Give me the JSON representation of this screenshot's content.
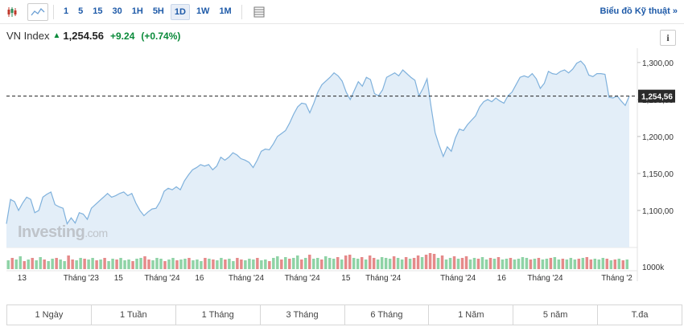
{
  "toolbar": {
    "candle_icon": "candlestick-icon",
    "area_icon": "area-chart-icon",
    "intervals": [
      "1",
      "5",
      "15",
      "30",
      "1H",
      "5H",
      "1D",
      "1W",
      "1M"
    ],
    "active_interval": "1D",
    "table_icon": "table-icon",
    "tech_chart_link": "Biểu đồ Kỹ thuật »"
  },
  "header": {
    "name": "VN Index",
    "price": "1,254.56",
    "change": "+9.24",
    "change_pct": "(+0.74%)",
    "info_label": "i"
  },
  "logo": {
    "text": "Investing",
    "suffix": ".com"
  },
  "colors": {
    "line": "#7fb1dc",
    "area": "#e3eef8",
    "up_volume": "#8fd3a6",
    "down_volume": "#e58a8a",
    "positive": "#0a8a3a",
    "link": "#1e5aa8"
  },
  "chart_data": {
    "type": "area",
    "ylim": [
      1050,
      1315
    ],
    "y_ticks": [
      "1,300,00",
      "1,250,00",
      "1,200,00",
      "1,150,00",
      "1,100,00"
    ],
    "y_tick_values": [
      1300,
      1250,
      1200,
      1150,
      1100
    ],
    "current_label": "1,254,56",
    "current_value": 1254.56,
    "volume_label": "1000k",
    "x_labels": [
      "13",
      "Tháng '23",
      "15",
      "Tháng '24",
      "16",
      "Tháng '24",
      "Tháng '24",
      "15",
      "Tháng '24",
      "Tháng '24",
      "16",
      "Tháng '24",
      "Tháng '2"
    ],
    "x_label_positions": [
      0.025,
      0.12,
      0.18,
      0.25,
      0.31,
      0.385,
      0.475,
      0.545,
      0.605,
      0.725,
      0.795,
      0.865,
      0.98
    ],
    "values": [
      1082,
      1115,
      1112,
      1100,
      1110,
      1118,
      1115,
      1097,
      1100,
      1118,
      1122,
      1125,
      1108,
      1105,
      1103,
      1082,
      1090,
      1083,
      1097,
      1095,
      1088,
      1103,
      1108,
      1113,
      1118,
      1123,
      1118,
      1120,
      1123,
      1125,
      1120,
      1123,
      1110,
      1100,
      1093,
      1098,
      1102,
      1103,
      1112,
      1126,
      1130,
      1128,
      1132,
      1128,
      1140,
      1148,
      1155,
      1158,
      1162,
      1160,
      1162,
      1155,
      1160,
      1172,
      1168,
      1172,
      1178,
      1175,
      1170,
      1168,
      1165,
      1158,
      1168,
      1180,
      1183,
      1182,
      1190,
      1200,
      1204,
      1208,
      1218,
      1230,
      1240,
      1245,
      1244,
      1232,
      1245,
      1260,
      1270,
      1275,
      1280,
      1286,
      1282,
      1275,
      1260,
      1250,
      1262,
      1274,
      1268,
      1280,
      1277,
      1258,
      1255,
      1263,
      1280,
      1283,
      1286,
      1282,
      1290,
      1285,
      1280,
      1276,
      1255,
      1265,
      1278,
      1240,
      1205,
      1188,
      1173,
      1186,
      1180,
      1198,
      1210,
      1208,
      1216,
      1222,
      1228,
      1240,
      1247,
      1250,
      1247,
      1252,
      1248,
      1245,
      1255,
      1260,
      1270,
      1280,
      1282,
      1280,
      1285,
      1278,
      1265,
      1272,
      1288,
      1285,
      1284,
      1288,
      1290,
      1286,
      1291,
      1299,
      1302,
      1296,
      1283,
      1281,
      1285,
      1285,
      1284,
      1253,
      1252,
      1255,
      1248,
      1242,
      1254.56
    ],
    "volume_up_down": [
      1,
      0,
      1,
      1,
      0,
      1,
      0,
      1,
      1,
      0,
      1,
      1,
      0,
      1,
      1,
      0,
      0,
      1,
      1,
      0,
      1,
      1,
      0,
      1,
      0,
      1,
      1,
      0,
      1,
      1,
      1,
      0,
      1,
      1,
      0,
      0,
      1,
      1,
      1,
      0,
      1,
      1,
      0,
      1,
      1,
      0,
      1,
      1,
      1,
      0,
      1,
      0,
      1,
      1,
      0,
      1,
      1,
      0,
      0,
      1,
      1,
      1,
      0,
      1,
      1,
      0,
      1,
      1,
      0,
      1,
      0,
      1,
      1,
      0,
      1,
      0,
      1,
      1,
      0,
      1,
      1,
      1,
      0,
      1,
      0,
      0,
      1,
      1,
      0,
      1,
      0,
      0,
      1,
      1,
      1,
      1,
      0,
      1,
      1,
      0,
      1,
      0,
      0,
      1,
      0,
      0,
      0,
      1,
      0,
      1,
      1,
      0,
      1,
      0,
      0,
      1,
      1,
      0,
      1,
      1,
      0,
      1,
      0,
      1,
      1,
      0,
      1,
      1,
      1,
      1,
      0,
      1,
      0,
      1,
      1,
      0,
      1,
      1,
      0,
      1,
      1,
      1,
      0,
      1,
      0,
      0,
      1,
      1,
      1,
      0,
      1,
      0,
      1,
      0,
      1
    ],
    "volume_heights": [
      0.55,
      0.7,
      0.6,
      0.8,
      0.5,
      0.6,
      0.7,
      0.55,
      0.75,
      0.6,
      0.5,
      0.65,
      0.7,
      0.6,
      0.5,
      0.85,
      0.6,
      0.55,
      0.7,
      0.65,
      0.6,
      0.7,
      0.55,
      0.6,
      0.7,
      0.5,
      0.65,
      0.6,
      0.7,
      0.55,
      0.6,
      0.5,
      0.65,
      0.7,
      0.8,
      0.6,
      0.55,
      0.7,
      0.65,
      0.5,
      0.6,
      0.7,
      0.55,
      0.6,
      0.65,
      0.7,
      0.55,
      0.6,
      0.5,
      0.7,
      0.65,
      0.6,
      0.55,
      0.7,
      0.6,
      0.65,
      0.5,
      0.7,
      0.6,
      0.55,
      0.65,
      0.6,
      0.7,
      0.55,
      0.6,
      0.5,
      0.7,
      0.8,
      0.6,
      0.75,
      0.65,
      0.7,
      0.85,
      0.6,
      0.7,
      0.9,
      0.65,
      0.7,
      0.6,
      0.8,
      0.7,
      0.65,
      0.75,
      0.6,
      0.85,
      0.9,
      0.7,
      0.65,
      0.75,
      0.6,
      0.85,
      0.7,
      0.6,
      0.75,
      0.7,
      0.65,
      0.8,
      0.7,
      0.6,
      0.75,
      0.65,
      0.7,
      0.85,
      0.75,
      0.9,
      1.0,
      0.95,
      0.7,
      0.85,
      0.6,
      0.7,
      0.8,
      0.65,
      0.7,
      0.8,
      0.6,
      0.7,
      0.65,
      0.75,
      0.6,
      0.7,
      0.65,
      0.75,
      0.6,
      0.65,
      0.7,
      0.6,
      0.65,
      0.75,
      0.7,
      0.6,
      0.65,
      0.7,
      0.6,
      0.65,
      0.7,
      0.75,
      0.6,
      0.65,
      0.6,
      0.7,
      0.6,
      0.65,
      0.7,
      0.75,
      0.6,
      0.65,
      0.6,
      0.7,
      0.65,
      0.55,
      0.6,
      0.65,
      0.55,
      0.6
    ]
  },
  "range_buttons": [
    "1 Ngày",
    "1 Tuần",
    "1 Tháng",
    "3 Tháng",
    "6 Tháng",
    "1 Năm",
    "5 năm",
    "T.đa"
  ]
}
